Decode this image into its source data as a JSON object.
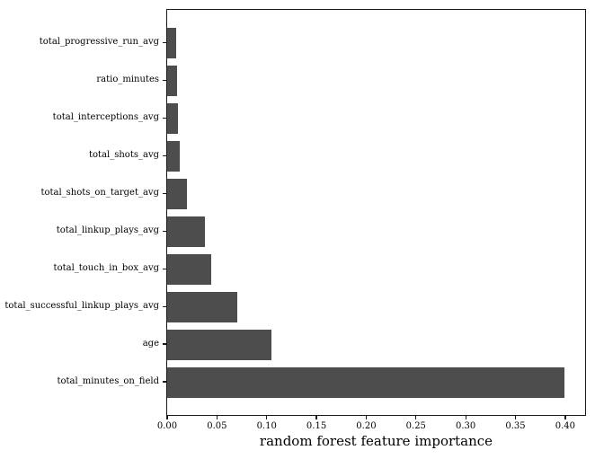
{
  "figure": {
    "background": "#ffffff"
  },
  "chart_data": {
    "type": "bar",
    "orientation": "horizontal",
    "title": "",
    "xlabel": "random forest feature importance",
    "ylabel": "",
    "categories": [
      "total_progressive_run_avg",
      "ratio_minutes",
      "total_interceptions_avg",
      "total_shots_avg",
      "total_shots_on_target_avg",
      "total_linkup_plays_avg",
      "total_touch_in_box_avg",
      "total_successful_linkup_plays_avg",
      "age",
      "total_minutes_on_field"
    ],
    "values": [
      0.009,
      0.01,
      0.011,
      0.013,
      0.02,
      0.038,
      0.044,
      0.07,
      0.105,
      0.399
    ],
    "xlim": [
      0,
      0.42
    ],
    "x_ticks": [
      0.0,
      0.05,
      0.1,
      0.15,
      0.2,
      0.25,
      0.3,
      0.35,
      0.4
    ],
    "x_tick_labels": [
      "0.00",
      "0.05",
      "0.10",
      "0.15",
      "0.20",
      "0.25",
      "0.30",
      "0.35",
      "0.40"
    ],
    "bar_color": "#4d4d4d",
    "axis_color": "#1a1a1a",
    "text_color": "#000000",
    "grid": false,
    "legend": "none"
  }
}
